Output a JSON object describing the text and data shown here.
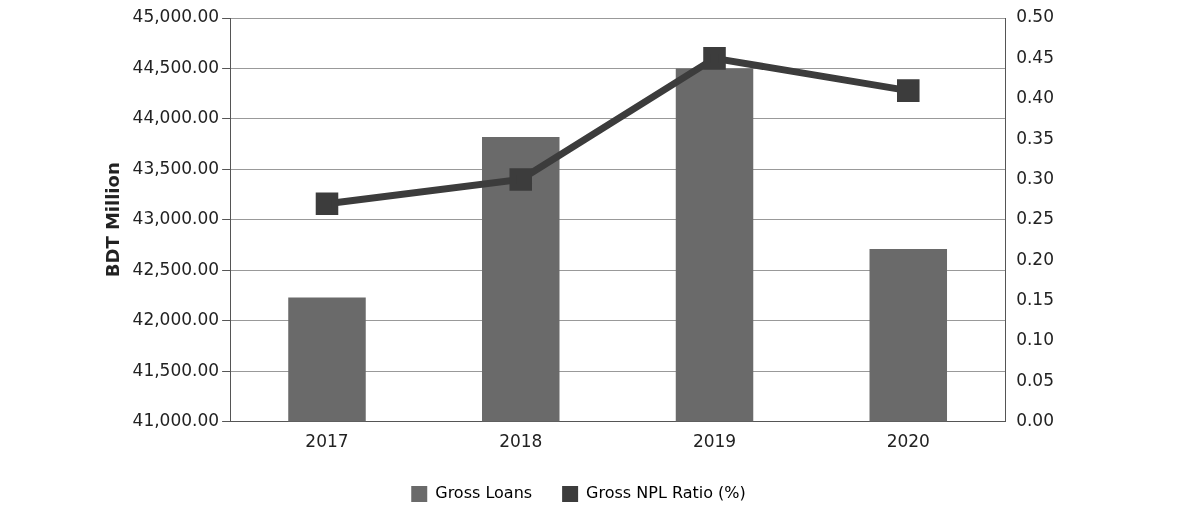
{
  "chart_data": {
    "type": "bar",
    "ylabel": "BDT Million",
    "categories": [
      "2017",
      "2018",
      "2019",
      "2020"
    ],
    "series": [
      {
        "name": "Gross Loans",
        "color": "#6a6a6a",
        "values": [
          42230,
          43820,
          44500,
          42710
        ]
      },
      {
        "name": "Gross NPL Ratio (%)",
        "type": "line",
        "axis": "y2",
        "color": "#3c3c3c",
        "values": [
          0.27,
          0.3,
          0.45,
          0.41
        ]
      }
    ],
    "ylim": [
      41000,
      45000
    ],
    "yticks": [
      {
        "value": 41000,
        "label": "41,000.00"
      },
      {
        "value": 41500,
        "label": "41,500.00"
      },
      {
        "value": 42000,
        "label": "42,000.00"
      },
      {
        "value": 42500,
        "label": "42,500.00"
      },
      {
        "value": 43000,
        "label": "43,000.00"
      },
      {
        "value": 43500,
        "label": "43,500.00"
      },
      {
        "value": 44000,
        "label": "44,000.00"
      },
      {
        "value": 44500,
        "label": "44,500.00"
      },
      {
        "value": 45000,
        "label": "45,000.00"
      }
    ],
    "y2lim": [
      0,
      0.5
    ],
    "y2ticks": [
      {
        "value": 0,
        "label": "0.00"
      },
      {
        "value": 0.05,
        "label": "0.05"
      },
      {
        "value": 0.1,
        "label": "0.10"
      },
      {
        "value": 0.15,
        "label": "0.15"
      },
      {
        "value": 0.2,
        "label": "0.20"
      },
      {
        "value": 0.25,
        "label": "0.25"
      },
      {
        "value": 0.3,
        "label": "0.30"
      },
      {
        "value": 0.35,
        "label": "0.35"
      },
      {
        "value": 0.4,
        "label": "0.40"
      },
      {
        "value": 0.45,
        "label": "0.45"
      },
      {
        "value": 0.5,
        "label": "0.50"
      }
    ],
    "grid": "y",
    "legend": "bottom",
    "marker": "square"
  }
}
